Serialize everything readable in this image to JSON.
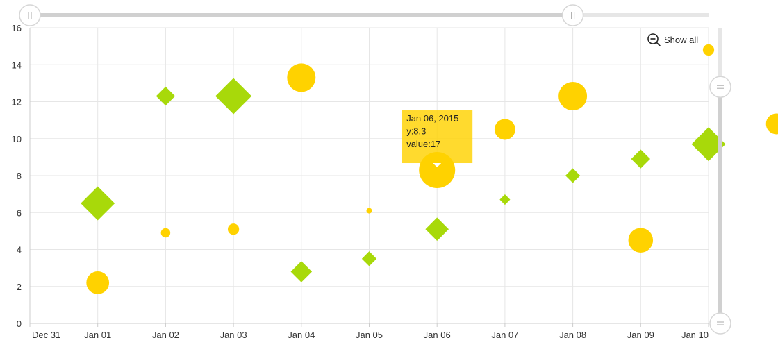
{
  "chart_data": {
    "type": "scatter",
    "subtype": "bubble",
    "xlim": [
      "2014-12-31",
      "2015-01-10"
    ],
    "ylim": [
      0,
      16
    ],
    "x_ticks": [
      "Dec 31",
      "Jan 01",
      "Jan 02",
      "Jan 03",
      "Jan 04",
      "Jan 05",
      "Jan 06",
      "Jan 07",
      "Jan 08",
      "Jan 09",
      "Jan 10"
    ],
    "y_ticks": [
      "0",
      "2",
      "4",
      "6",
      "8",
      "10",
      "12",
      "14",
      "16"
    ],
    "grid": true,
    "series": [
      {
        "marker": "circle",
        "color": "#ffd200",
        "points": [
          {
            "x": "2015-01-01",
            "y": 2.2,
            "value": 10
          },
          {
            "x": "2015-01-02",
            "y": 4.9,
            "value": 3
          },
          {
            "x": "2015-01-03",
            "y": 5.1,
            "value": 4
          },
          {
            "x": "2015-01-04",
            "y": 13.3,
            "value": 13
          },
          {
            "x": "2015-01-05",
            "y": 6.1,
            "value": 1
          },
          {
            "x": "2015-01-06",
            "y": 8.3,
            "value": 17
          },
          {
            "x": "2015-01-07",
            "y": 10.5,
            "value": 9
          },
          {
            "x": "2015-01-08",
            "y": 12.3,
            "value": 13
          },
          {
            "x": "2015-01-09",
            "y": 4.5,
            "value": 11
          },
          {
            "x": "2015-01-10",
            "y": 14.8,
            "value": 4
          },
          {
            "x": "2015-01-11",
            "y": 10.8,
            "value": 9
          }
        ]
      },
      {
        "marker": "diamond",
        "color": "#a8d90a",
        "points": [
          {
            "x": "2015-01-01",
            "y": 6.5,
            "value": 14
          },
          {
            "x": "2015-01-02",
            "y": 12.3,
            "value": 7
          },
          {
            "x": "2015-01-03",
            "y": 12.3,
            "value": 15
          },
          {
            "x": "2015-01-04",
            "y": 2.8,
            "value": 8
          },
          {
            "x": "2015-01-05",
            "y": 3.5,
            "value": 5
          },
          {
            "x": "2015-01-06",
            "y": 5.1,
            "value": 9
          },
          {
            "x": "2015-01-07",
            "y": 6.7,
            "value": 3
          },
          {
            "x": "2015-01-08",
            "y": 8.0,
            "value": 5
          },
          {
            "x": "2015-01-09",
            "y": 8.9,
            "value": 7
          },
          {
            "x": "2015-01-10",
            "y": 9.7,
            "value": 14
          }
        ]
      }
    ],
    "tooltip": {
      "series": 0,
      "point": 5,
      "lines": [
        "Jan 06, 2015",
        "y:8.3",
        "value:17"
      ]
    }
  },
  "controls": {
    "show_all_label": "Show all",
    "show_all_icon": "zoom-out-icon",
    "x_range_slider": {
      "start": 0.0,
      "end": 0.8
    },
    "y_range_slider": {
      "start": 0.0,
      "end": 0.8
    },
    "colors": {
      "slider_track": "#e6e6e6",
      "slider_fill": "#d0d0d0",
      "grid": "#e6e6e6",
      "axis": "#cccccc"
    }
  }
}
